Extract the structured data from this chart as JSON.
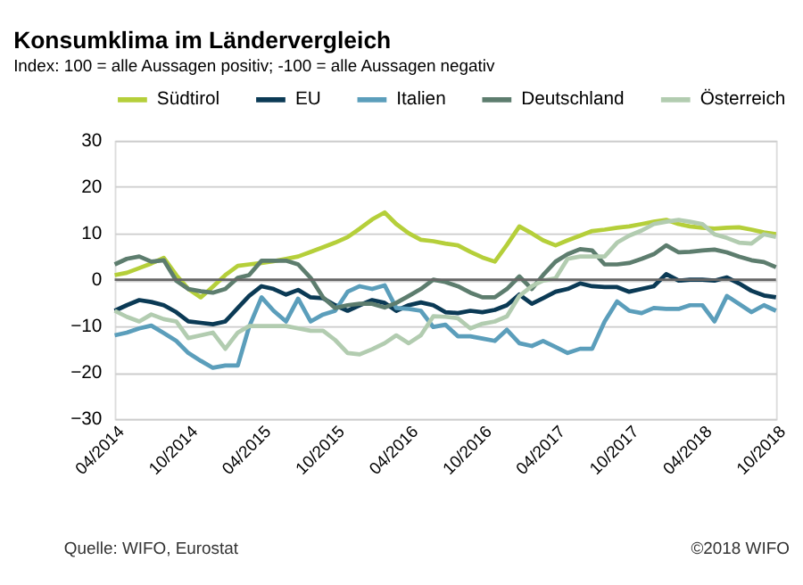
{
  "chart_data": {
    "type": "line",
    "title": "Konsumklima im Ländervergleich",
    "subtitle": "Index: 100 = alle Aussagen positiv; -100 =  alle Aussagen negativ",
    "x": [
      "2014-04",
      "2014-05",
      "2014-06",
      "2014-07",
      "2014-08",
      "2014-09",
      "2014-10",
      "2014-11",
      "2014-12",
      "2015-01",
      "2015-02",
      "2015-03",
      "2015-04",
      "2015-05",
      "2015-06",
      "2015-07",
      "2015-08",
      "2015-09",
      "2015-10",
      "2015-11",
      "2015-12",
      "2016-01",
      "2016-02",
      "2016-03",
      "2016-04",
      "2016-05",
      "2016-06",
      "2016-07",
      "2016-08",
      "2016-09",
      "2016-10",
      "2016-11",
      "2016-12",
      "2017-01",
      "2017-02",
      "2017-03",
      "2017-04",
      "2017-05",
      "2017-06",
      "2017-07",
      "2017-08",
      "2017-09",
      "2017-10",
      "2017-11",
      "2017-12",
      "2018-01",
      "2018-02",
      "2018-03",
      "2018-04",
      "2018-05",
      "2018-06",
      "2018-07",
      "2018-08",
      "2018-09",
      "2018-10"
    ],
    "series": [
      {
        "name": "Südtirol",
        "color": "#b5cf3a",
        "values": [
          1,
          1.5,
          2.5,
          3.5,
          4.7,
          1,
          -2,
          -3.8,
          -1.5,
          1,
          3,
          3.3,
          3.6,
          4,
          4.5,
          5,
          6,
          7,
          8,
          9.2,
          11,
          13,
          14.5,
          12,
          10,
          8.6,
          8.3,
          7.8,
          7.4,
          6,
          4.8,
          3.9,
          7.5,
          11.5,
          10,
          8.5,
          7.4,
          8.5,
          9.5,
          10.5,
          10.8,
          11.2,
          11.5,
          12,
          12.5,
          12.9,
          12,
          11.5,
          11.2,
          11,
          11.2,
          11.3,
          10.8,
          10.2,
          9.8
        ]
      },
      {
        "name": "EU",
        "color": "#0b3a55",
        "values": [
          -6.7,
          -5.5,
          -4.4,
          -4.8,
          -5.5,
          -7,
          -9,
          -9.3,
          -9.6,
          -9,
          -6.1,
          -3.5,
          -1.4,
          -2,
          -3.2,
          -2.2,
          -3.8,
          -4,
          -5.5,
          -6.7,
          -5.5,
          -4.4,
          -5,
          -6.7,
          -5.5,
          -4.9,
          -5.5,
          -7,
          -7.2,
          -6.7,
          -7,
          -6.5,
          -5.5,
          -3.2,
          -5.2,
          -4,
          -2.6,
          -2,
          -0.8,
          -1.4,
          -1.6,
          -1.6,
          -2.6,
          -2,
          -1.4,
          1.2,
          -0.2,
          0,
          0,
          -0.2,
          0.5,
          -0.8,
          -2.4,
          -3.4,
          -3.8
        ]
      },
      {
        "name": "Italien",
        "color": "#5b9ebb",
        "values": [
          -12,
          -11.4,
          -10.5,
          -9.9,
          -11.5,
          -13.2,
          -15.8,
          -17.5,
          -19,
          -18.5,
          -18.5,
          -10.2,
          -3.8,
          -6.7,
          -9,
          -4.1,
          -9,
          -7.5,
          -6.7,
          -2.6,
          -1.4,
          -2,
          -1.2,
          -6.1,
          -6.3,
          -6.7,
          -10.2,
          -9.7,
          -12.2,
          -12.2,
          -12.7,
          -13.2,
          -10.8,
          -13.7,
          -14.3,
          -13.2,
          -14.5,
          -15.8,
          -14.9,
          -14.9,
          -9,
          -4.7,
          -6.7,
          -7.2,
          -6.1,
          -6.3,
          -6.3,
          -5.5,
          -5.5,
          -9,
          -3.5,
          -5.2,
          -7,
          -5.5,
          -6.7
        ]
      },
      {
        "name": "Deutschland",
        "color": "#5d7d6e",
        "values": [
          3.3,
          4.5,
          5,
          3.9,
          4.2,
          -0.2,
          -2,
          -2.5,
          -2.8,
          -2,
          0.4,
          1,
          4.1,
          4.1,
          4.1,
          3.3,
          0.4,
          -3.8,
          -6.1,
          -5.5,
          -5.2,
          -5.2,
          -6,
          -5,
          -3.5,
          -2,
          0,
          -0.5,
          -1.4,
          -2.8,
          -3.8,
          -3.8,
          -2,
          0.7,
          -2,
          1,
          3.9,
          5.5,
          6.6,
          6.3,
          3.3,
          3.3,
          3.6,
          4.5,
          5.5,
          7.4,
          5.9,
          6,
          6.3,
          6.5,
          5.9,
          5,
          4.2,
          3.8,
          2.7
        ]
      },
      {
        "name": "Österreich",
        "color": "#b2ccb0",
        "values": [
          -6.7,
          -8,
          -9,
          -7.5,
          -8.5,
          -9,
          -12.6,
          -12,
          -11.4,
          -14.9,
          -11.4,
          -10,
          -10,
          -10,
          -10,
          -10.5,
          -11,
          -11,
          -13,
          -15.8,
          -16.1,
          -15,
          -13.7,
          -12,
          -13.7,
          -12,
          -7.9,
          -8,
          -8.3,
          -10.5,
          -9.5,
          -9,
          -7.9,
          -3.5,
          -1.4,
          -0.2,
          0.3,
          4.5,
          5,
          5,
          5,
          8,
          9.5,
          10.6,
          12,
          12.5,
          12.9,
          12.5,
          12,
          9.8,
          9,
          8,
          7.8,
          9.8,
          9.2
        ]
      }
    ],
    "xlim": [
      "2014-04",
      "2018-10"
    ],
    "xticks": [
      {
        "value": "2014-04",
        "label": "04/2014"
      },
      {
        "value": "2014-10",
        "label": "10/2014"
      },
      {
        "value": "2015-04",
        "label": "04/2015"
      },
      {
        "value": "2015-10",
        "label": "10/2015"
      },
      {
        "value": "2016-04",
        "label": "04/2016"
      },
      {
        "value": "2016-10",
        "label": "10/2016"
      },
      {
        "value": "2017-04",
        "label": "04/2017"
      },
      {
        "value": "2017-10",
        "label": "10/2017"
      },
      {
        "value": "2018-04",
        "label": "04/2018"
      },
      {
        "value": "2018-10",
        "label": "10/2018"
      }
    ],
    "ylim": [
      -30,
      30
    ],
    "yticks": [
      -30,
      -20,
      -10,
      0,
      10,
      20,
      30
    ],
    "ref_lines": [
      {
        "axis": "y",
        "value": 0,
        "color": "#666666"
      }
    ],
    "grid": "y",
    "legend": "top",
    "marker": "none",
    "line_style": "solid",
    "annotations": [
      "Quelle: WIFO, Eurostat",
      "©2018 WIFO"
    ]
  }
}
